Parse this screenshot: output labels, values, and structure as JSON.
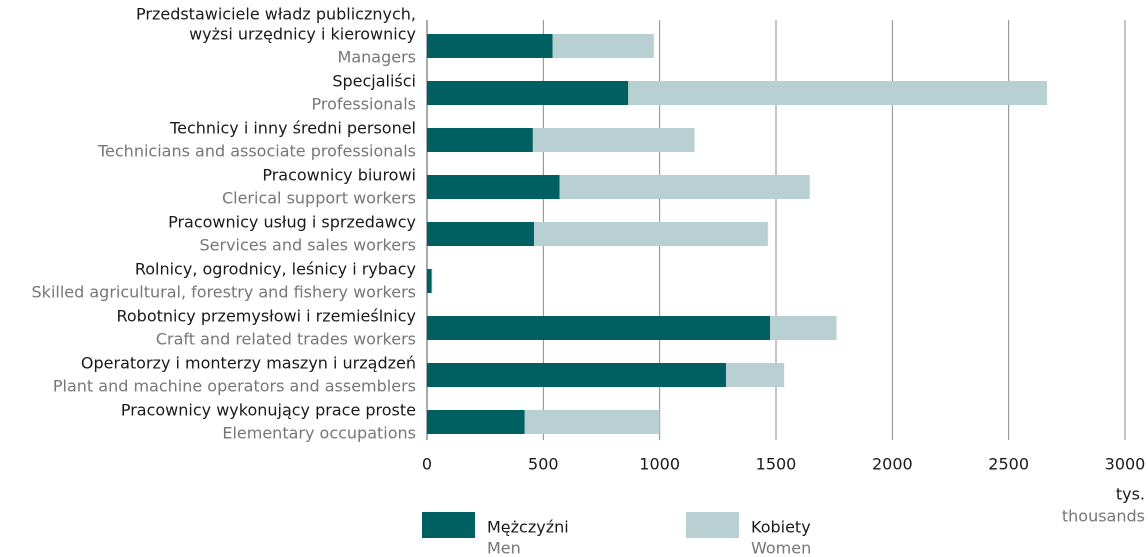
{
  "chart_data": {
    "type": "stacked-barh",
    "categories": [
      [
        "Przedstawiciele władz publicznych,",
        "wyżsi urzędnicy i kierownicy"
      ],
      [
        "Specjaliści"
      ],
      [
        "Technicy i inny średni personel"
      ],
      [
        "Pracownicy biurowi"
      ],
      [
        "Pracownicy usług i sprzedawcy"
      ],
      [
        "Rolnicy, ogrodnicy, leśnicy i rybacy"
      ],
      [
        "Robotnicy przemysłowi i rzemieślnicy"
      ],
      [
        "Operatorzy i monterzy maszyn i urządzeń"
      ],
      [
        "Pracownicy wykonujący prace proste"
      ]
    ],
    "categories_en": [
      "Managers",
      "Professionals",
      "Technicians and associate professionals",
      "Clerical support workers",
      "Services and sales workers",
      "Skilled agricultural, forestry and fishery workers",
      "Craft and related trades workers",
      "Plant and machine operators and assemblers",
      "Elementary occupations"
    ],
    "series": [
      {
        "name": "Mężczyźni",
        "name_en": "Men",
        "color": "#005f60",
        "values": [
          540,
          865,
          455,
          570,
          460,
          20,
          1475,
          1285,
          420
        ]
      },
      {
        "name": "Kobiety",
        "name_en": "Women",
        "color": "#b8d0d2",
        "values": [
          435,
          1800,
          695,
          1075,
          1005,
          3,
          285,
          250,
          580
        ]
      }
    ],
    "xlabel": "tys.",
    "xlabel_en": "thousands",
    "xlim": [
      0,
      3000
    ],
    "xticks": [
      0,
      500,
      1000,
      1500,
      2000,
      2500,
      3000
    ],
    "grid": true
  }
}
